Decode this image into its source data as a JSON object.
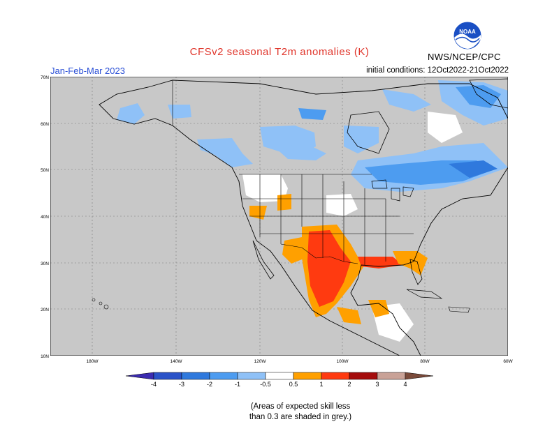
{
  "header": {
    "title": "CFSv2 seasonal T2m anomalies (K)",
    "period": "Jan-Feb-Mar 2023",
    "initial_conditions": "initial conditions: 12Oct2022-21Oct2022",
    "agency": "NWS/NCEP/CPC",
    "logo_text": "NOAA"
  },
  "map": {
    "projection": "lat-lon",
    "lon_range": [
      -190,
      -60
    ],
    "lat_range": [
      10,
      70
    ],
    "lat_labels": [
      "70N",
      "60N",
      "50N",
      "40N",
      "30N",
      "20N",
      "10N"
    ],
    "lon_labels": [
      "180W",
      "140W",
      "120W",
      "100W",
      "80W",
      "60W"
    ],
    "low_skill_color": "#c8c8c8",
    "ocean_land_background": "#c8c8c8"
  },
  "colorbar": {
    "labels": [
      "-4",
      "-3",
      "-2",
      "-1",
      "-0.5",
      "0.5",
      "1",
      "2",
      "3",
      "4"
    ],
    "colors": [
      "#3b2bb0",
      "#2a52c8",
      "#2f79dd",
      "#4d9cf0",
      "#8fc1f7",
      "#ffffff",
      "#ffa000",
      "#ff3a10",
      "#a40c0c",
      "#c9a297",
      "#7a4a3a"
    ],
    "note_line1": "(Areas of expected skill less",
    "note_line2": "than 0.3 are shaded in grey.)"
  }
}
